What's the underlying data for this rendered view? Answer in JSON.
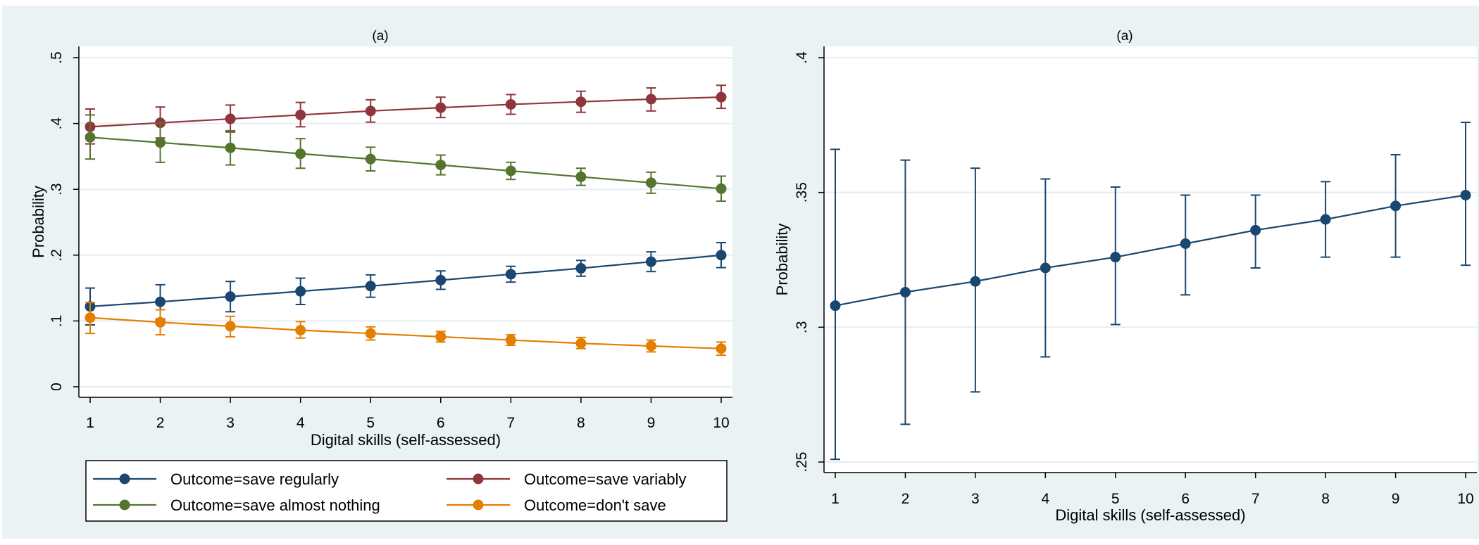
{
  "chart_data": [
    {
      "type": "line",
      "title": "(a)",
      "xlabel": "Digital skills (self-assessed)",
      "ylabel": "Probability",
      "x": [
        1,
        2,
        3,
        4,
        5,
        6,
        7,
        8,
        9,
        10
      ],
      "xlim": [
        1,
        10
      ],
      "ylim": [
        0,
        0.5
      ],
      "xticks": [
        "1",
        "2",
        "3",
        "4",
        "5",
        "6",
        "7",
        "8",
        "9",
        "10"
      ],
      "yticks": [
        {
          "value": 0,
          "label": "0"
        },
        {
          "value": 0.1,
          "label": ".1"
        },
        {
          "value": 0.2,
          "label": ".2"
        },
        {
          "value": 0.3,
          "label": ".3"
        },
        {
          "value": 0.4,
          "label": ".4"
        },
        {
          "value": 0.5,
          "label": ".5"
        }
      ],
      "grid": true,
      "legend_position": "bottom",
      "series": [
        {
          "name": "Outcome=save regularly",
          "color": "#1a476f",
          "values": [
            0.122,
            0.129,
            0.137,
            0.145,
            0.153,
            0.162,
            0.171,
            0.18,
            0.19,
            0.2
          ],
          "lower": [
            0.094,
            0.103,
            0.114,
            0.125,
            0.136,
            0.148,
            0.159,
            0.168,
            0.175,
            0.181
          ],
          "upper": [
            0.15,
            0.155,
            0.16,
            0.165,
            0.17,
            0.176,
            0.183,
            0.192,
            0.205,
            0.219
          ]
        },
        {
          "name": "Outcome=save variably",
          "color": "#90353b",
          "values": [
            0.395,
            0.401,
            0.407,
            0.413,
            0.419,
            0.424,
            0.429,
            0.433,
            0.437,
            0.44
          ],
          "lower": [
            0.369,
            0.378,
            0.387,
            0.395,
            0.402,
            0.409,
            0.414,
            0.417,
            0.419,
            0.423
          ],
          "upper": [
            0.422,
            0.425,
            0.428,
            0.432,
            0.436,
            0.44,
            0.444,
            0.449,
            0.454,
            0.458
          ]
        },
        {
          "name": "Outcome=save almost nothing",
          "color": "#55752f",
          "values": [
            0.379,
            0.371,
            0.363,
            0.354,
            0.346,
            0.337,
            0.328,
            0.319,
            0.31,
            0.301
          ],
          "lower": [
            0.346,
            0.341,
            0.337,
            0.332,
            0.328,
            0.322,
            0.315,
            0.306,
            0.294,
            0.282
          ],
          "upper": [
            0.413,
            0.401,
            0.389,
            0.377,
            0.364,
            0.352,
            0.341,
            0.332,
            0.326,
            0.32
          ]
        },
        {
          "name": "Outcome=don't save",
          "color": "#e37e00",
          "values": [
            0.105,
            0.098,
            0.092,
            0.086,
            0.081,
            0.076,
            0.071,
            0.066,
            0.062,
            0.058
          ],
          "lower": [
            0.081,
            0.079,
            0.076,
            0.074,
            0.071,
            0.068,
            0.063,
            0.058,
            0.053,
            0.048
          ],
          "upper": [
            0.128,
            0.117,
            0.107,
            0.099,
            0.091,
            0.084,
            0.079,
            0.075,
            0.071,
            0.068
          ]
        }
      ],
      "legend": [
        {
          "label": "Outcome=save regularly",
          "color": "#1a476f"
        },
        {
          "label": "Outcome=save variably",
          "color": "#90353b"
        },
        {
          "label": "Outcome=save almost nothing",
          "color": "#55752f"
        },
        {
          "label": "Outcome=don't save",
          "color": "#e37e00"
        }
      ]
    },
    {
      "type": "line",
      "title": "(a)",
      "xlabel": "Digital skills (self-assessed)",
      "ylabel": "Probability",
      "x": [
        1,
        2,
        3,
        4,
        5,
        6,
        7,
        8,
        9,
        10
      ],
      "xlim": [
        1,
        10
      ],
      "ylim": [
        0.25,
        0.4
      ],
      "xticks": [
        "1",
        "2",
        "3",
        "4",
        "5",
        "6",
        "7",
        "8",
        "9",
        "10"
      ],
      "yticks": [
        {
          "value": 0.25,
          "label": ".25"
        },
        {
          "value": 0.3,
          "label": ".3"
        },
        {
          "value": 0.35,
          "label": ".35"
        },
        {
          "value": 0.4,
          "label": ".4"
        }
      ],
      "grid": true,
      "series": [
        {
          "color": "#1a476f",
          "values": [
            0.308,
            0.313,
            0.317,
            0.322,
            0.326,
            0.331,
            0.336,
            0.34,
            0.345,
            0.349
          ],
          "lower": [
            0.251,
            0.264,
            0.276,
            0.289,
            0.301,
            0.312,
            0.322,
            0.326,
            0.326,
            0.323
          ],
          "upper": [
            0.366,
            0.362,
            0.359,
            0.355,
            0.352,
            0.349,
            0.349,
            0.354,
            0.364,
            0.376
          ]
        }
      ]
    }
  ]
}
